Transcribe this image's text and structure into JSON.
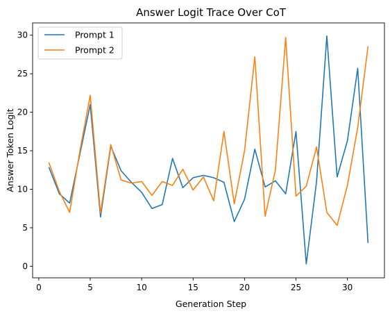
{
  "chart_data": {
    "type": "line",
    "title": "Answer Logit Trace Over CoT",
    "xlabel": "Generation Step",
    "ylabel": "Answer Token Logit",
    "xlim": [
      -0.6,
      33.6
    ],
    "ylim": [
      -1.5,
      31.6
    ],
    "xticks": [
      0,
      5,
      10,
      15,
      20,
      25,
      30
    ],
    "yticks": [
      0,
      5,
      10,
      15,
      20,
      25,
      30
    ],
    "grid": false,
    "legend_position": "top-left",
    "x": [
      1,
      2,
      3,
      4,
      5,
      6,
      7,
      8,
      9,
      10,
      11,
      12,
      13,
      14,
      15,
      16,
      17,
      18,
      19,
      20,
      21,
      22,
      23,
      24,
      25,
      26,
      27,
      28,
      29,
      30,
      31,
      32
    ],
    "series": [
      {
        "name": "Prompt 1",
        "color": "#1f77b4",
        "values": [
          12.8,
          9.4,
          8.2,
          14.6,
          21.0,
          6.4,
          15.6,
          12.4,
          10.9,
          9.6,
          7.5,
          8.0,
          14.0,
          10.2,
          11.5,
          11.8,
          11.5,
          10.9,
          5.8,
          8.7,
          15.2,
          10.3,
          11.1,
          9.4,
          17.5,
          0.3,
          11.0,
          29.9,
          11.6,
          16.3,
          25.7,
          3.1
        ]
      },
      {
        "name": "Prompt 2",
        "color": "#ff7f0e",
        "values": [
          13.4,
          9.7,
          7.0,
          15.0,
          22.2,
          6.9,
          15.8,
          11.2,
          10.8,
          11.0,
          9.2,
          11.0,
          10.5,
          12.6,
          9.9,
          11.6,
          8.5,
          17.5,
          8.1,
          15.0,
          27.2,
          6.5,
          12.5,
          29.7,
          9.1,
          10.4,
          15.5,
          7.0,
          5.3,
          10.5,
          18.0,
          28.5
        ]
      }
    ]
  }
}
